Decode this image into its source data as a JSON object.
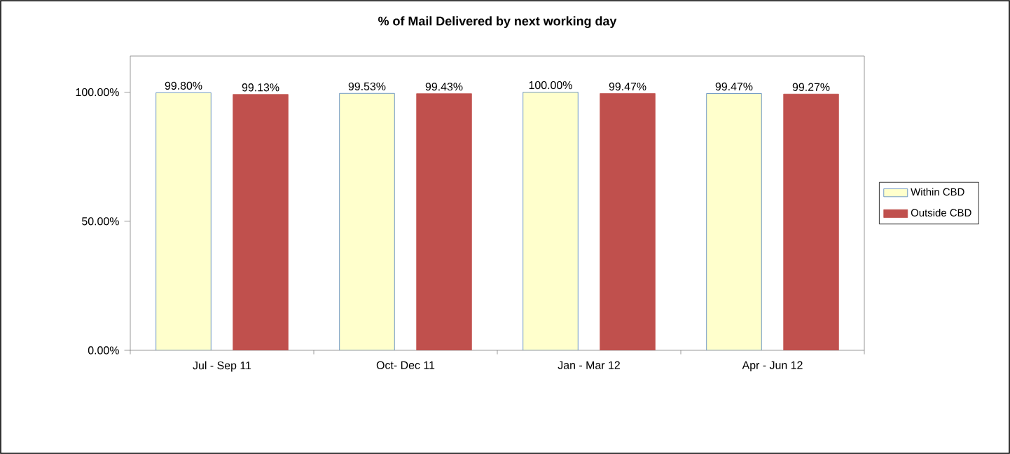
{
  "chart_data": {
    "type": "bar",
    "title": "% of Mail Delivered by next working day",
    "categories": [
      "Jul - Sep 11",
      "Oct- Dec 11",
      "Jan - Mar 12",
      "Apr - Jun 12"
    ],
    "series": [
      {
        "name": "Within CBD",
        "color": "#ffffcc",
        "values": [
          99.8,
          99.53,
          100,
          99.47
        ],
        "value_labels": [
          "99.80%",
          "99.53%",
          "100.00%",
          "99.47%"
        ]
      },
      {
        "name": "Outside CBD",
        "color": "#c0504d",
        "values": [
          99.13,
          99.43,
          99.47,
          99.27
        ],
        "value_labels": [
          "99.13%",
          "99.43%",
          "99.47%",
          "99.27%"
        ]
      }
    ],
    "ylim": [
      0,
      114
    ],
    "yticks": [
      {
        "value": 0,
        "label": "0.00%"
      },
      {
        "value": 50,
        "label": "50.00%"
      },
      {
        "value": 100,
        "label": "100.00%"
      }
    ],
    "grid": false,
    "legend": "right"
  }
}
